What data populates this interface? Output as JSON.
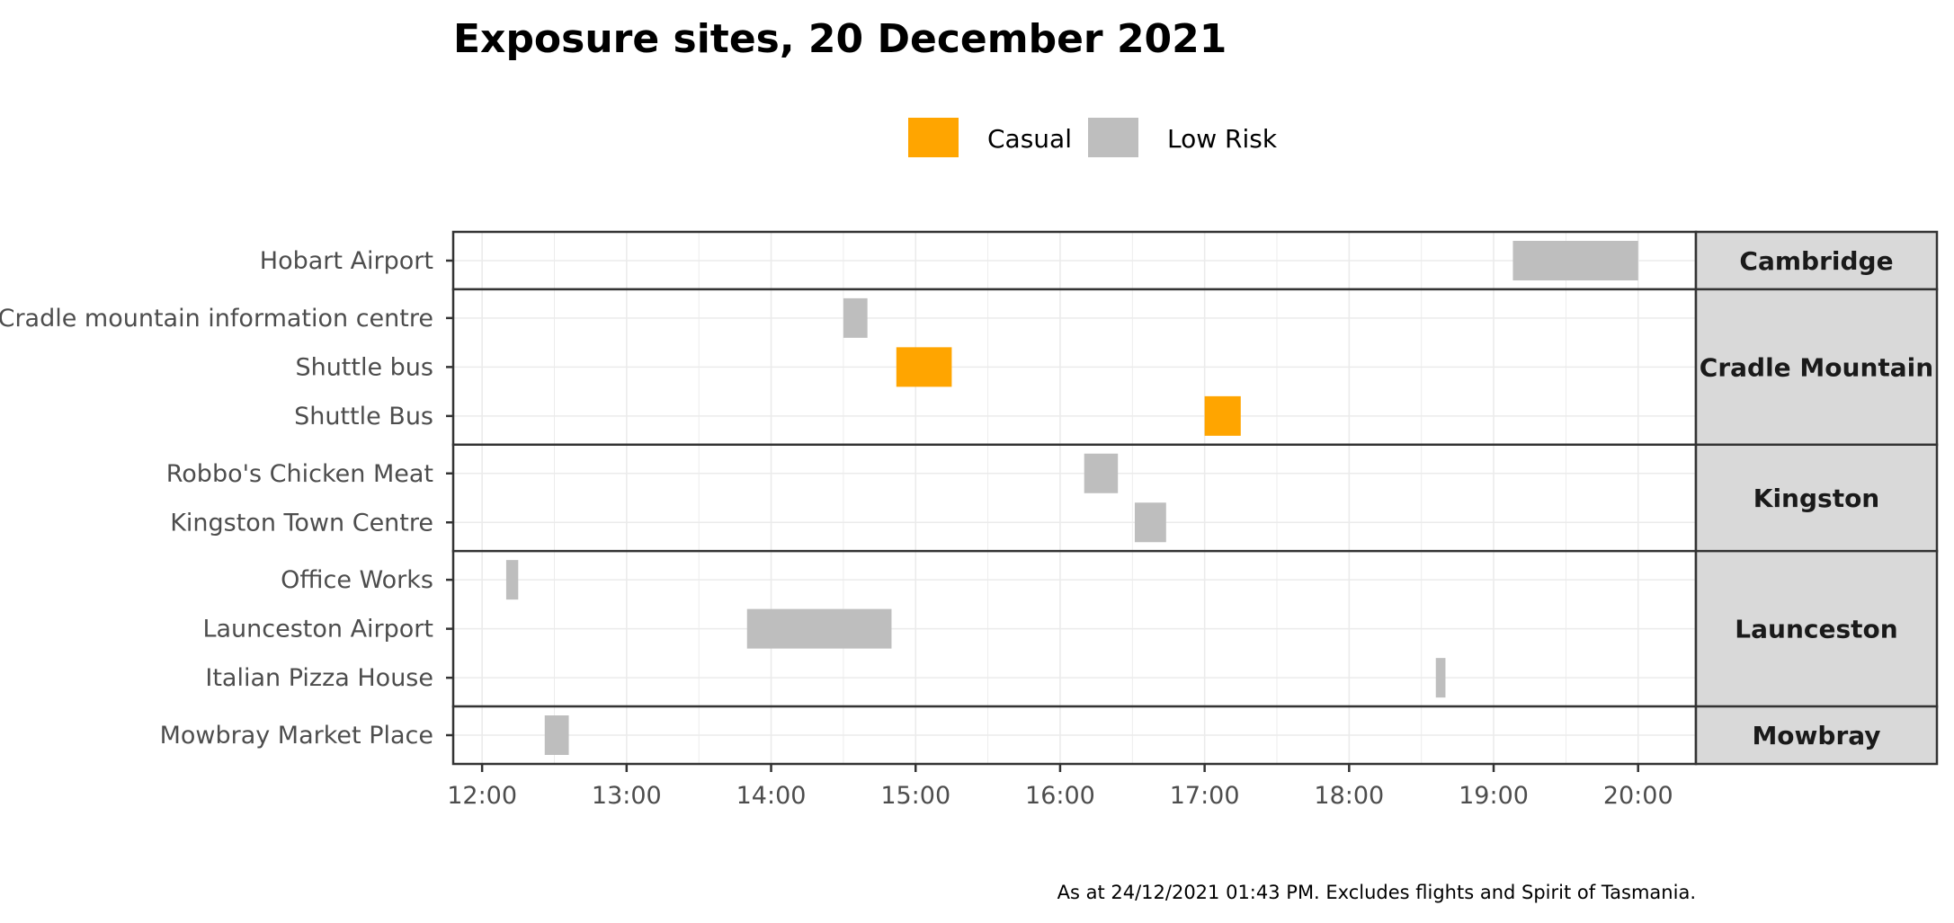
{
  "chart_data": {
    "type": "gantt",
    "title": "Exposure sites, 20 December 2021",
    "caption": "As at 24/12/2021 01:43 PM. Excludes flights and Spirit of Tasmania.",
    "legend": {
      "placement": "top",
      "entries": [
        {
          "name": "Casual",
          "color": "#FFA500"
        },
        {
          "name": "Low Risk",
          "color": "#BEBEBE"
        }
      ]
    },
    "x_axis": {
      "range": [
        "11:48",
        "20:24"
      ],
      "ticks": [
        "12:00",
        "13:00",
        "14:00",
        "15:00",
        "16:00",
        "17:00",
        "18:00",
        "19:00",
        "20:00"
      ],
      "grid": true
    },
    "facets": [
      {
        "name": "Cambridge",
        "sites": [
          {
            "site": "Hobart Airport",
            "start": "19:08",
            "end": "20:00",
            "risk": "Low Risk"
          }
        ]
      },
      {
        "name": "Cradle Mountain",
        "sites": [
          {
            "site": "Cradle mountain information centre",
            "start": "14:30",
            "end": "14:40",
            "risk": "Low Risk"
          },
          {
            "site": "Shuttle bus",
            "start": "14:52",
            "end": "15:15",
            "risk": "Casual"
          },
          {
            "site": "Shuttle Bus",
            "start": "17:00",
            "end": "17:15",
            "risk": "Casual"
          }
        ]
      },
      {
        "name": "Kingston",
        "sites": [
          {
            "site": "Robbo's Chicken Meat",
            "start": "16:10",
            "end": "16:24",
            "risk": "Low Risk"
          },
          {
            "site": "Kingston Town Centre",
            "start": "16:31",
            "end": "16:44",
            "risk": "Low Risk"
          }
        ]
      },
      {
        "name": "Launceston",
        "sites": [
          {
            "site": "Office Works",
            "start": "12:10",
            "end": "12:15",
            "risk": "Low Risk"
          },
          {
            "site": "Launceston Airport",
            "start": "13:50",
            "end": "14:50",
            "risk": "Low Risk"
          },
          {
            "site": "Italian Pizza House",
            "start": "18:36",
            "end": "18:40",
            "risk": "Low Risk"
          }
        ]
      },
      {
        "name": "Mowbray",
        "sites": [
          {
            "site": "Mowbray Market Place",
            "start": "12:26",
            "end": "12:36",
            "risk": "Low Risk"
          }
        ]
      }
    ]
  }
}
